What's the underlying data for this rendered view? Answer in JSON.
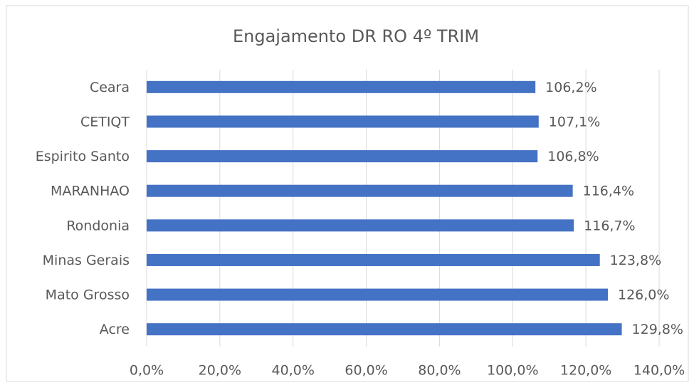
{
  "chart_data": {
    "type": "barh",
    "title": "Engajamento DR RO 4º TRIM",
    "categories": [
      "Ceara",
      "CETIQT",
      "Espirito Santo",
      "MARANHAO",
      "Rondonia",
      "Minas Gerais",
      "Mato Grosso",
      "Acre"
    ],
    "values": [
      106.2,
      107.1,
      106.8,
      116.4,
      116.7,
      123.8,
      126.0,
      129.8
    ],
    "value_labels": [
      "106,2%",
      "107,1%",
      "106,8%",
      "116,4%",
      "116,7%",
      "123,8%",
      "126,0%",
      "129,8%"
    ],
    "color": "#4472c4",
    "xlim": [
      0,
      140
    ],
    "xticks": [
      {
        "value": 0,
        "label": "0,0%"
      },
      {
        "value": 20,
        "label": "20,0%"
      },
      {
        "value": 40,
        "label": "40,0%"
      },
      {
        "value": 60,
        "label": "60,0%"
      },
      {
        "value": 80,
        "label": "80,0%"
      },
      {
        "value": 100,
        "label": "100,0%"
      },
      {
        "value": 120,
        "label": "120,0%"
      },
      {
        "value": 140,
        "label": "140,0%"
      }
    ],
    "grid": true
  }
}
